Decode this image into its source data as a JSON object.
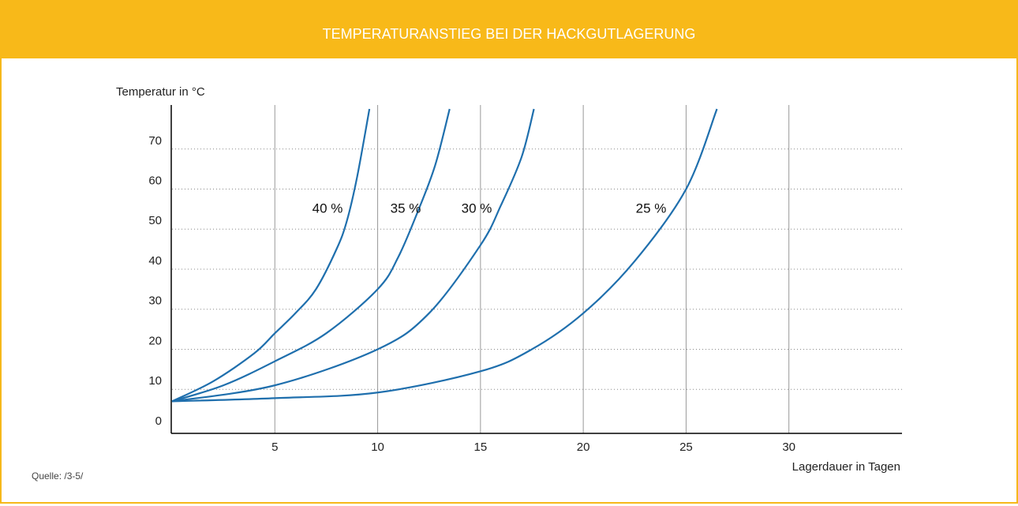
{
  "chart_data": {
    "type": "line",
    "title": "TEMPERATURANSTIEG BEI DER HACKGUTLAGERUNG",
    "y_label": "Temperatur in °C",
    "x_label": "Lagerdauer in Tagen",
    "source": "Quelle: /3-5/",
    "xlim": [
      0,
      35.5
    ],
    "ylim": [
      -1,
      81
    ],
    "xticks": [
      5,
      10,
      15,
      20,
      25,
      30
    ],
    "yticks": [
      0,
      10,
      20,
      30,
      40,
      50,
      60,
      70
    ],
    "grid": true,
    "series": [
      {
        "name": "40 %",
        "color": "#1f6fad",
        "x": [
          0,
          2,
          4,
          5,
          6,
          7,
          8,
          8.5,
          9,
          9.6
        ],
        "values": [
          7,
          12,
          19,
          24,
          29,
          35,
          45,
          52,
          63,
          80
        ]
      },
      {
        "name": "35 %",
        "color": "#1f6fad",
        "x": [
          0,
          2.5,
          5,
          7.5,
          10,
          11,
          12,
          12.8,
          13.5
        ],
        "values": [
          7,
          11,
          17,
          24,
          35,
          43,
          55,
          66,
          80
        ]
      },
      {
        "name": "30 %",
        "color": "#1f6fad",
        "x": [
          0,
          5,
          10,
          12.5,
          15,
          16,
          17,
          17.6
        ],
        "values": [
          7,
          11,
          20,
          29,
          46,
          56,
          68,
          80
        ]
      },
      {
        "name": "25 %",
        "color": "#1f6fad",
        "x": [
          0,
          5,
          10,
          15,
          17.5,
          20,
          22.5,
          25,
          26.5
        ],
        "values": [
          7,
          7.8,
          9.2,
          14.5,
          20,
          29,
          42,
          60,
          80
        ]
      }
    ]
  }
}
